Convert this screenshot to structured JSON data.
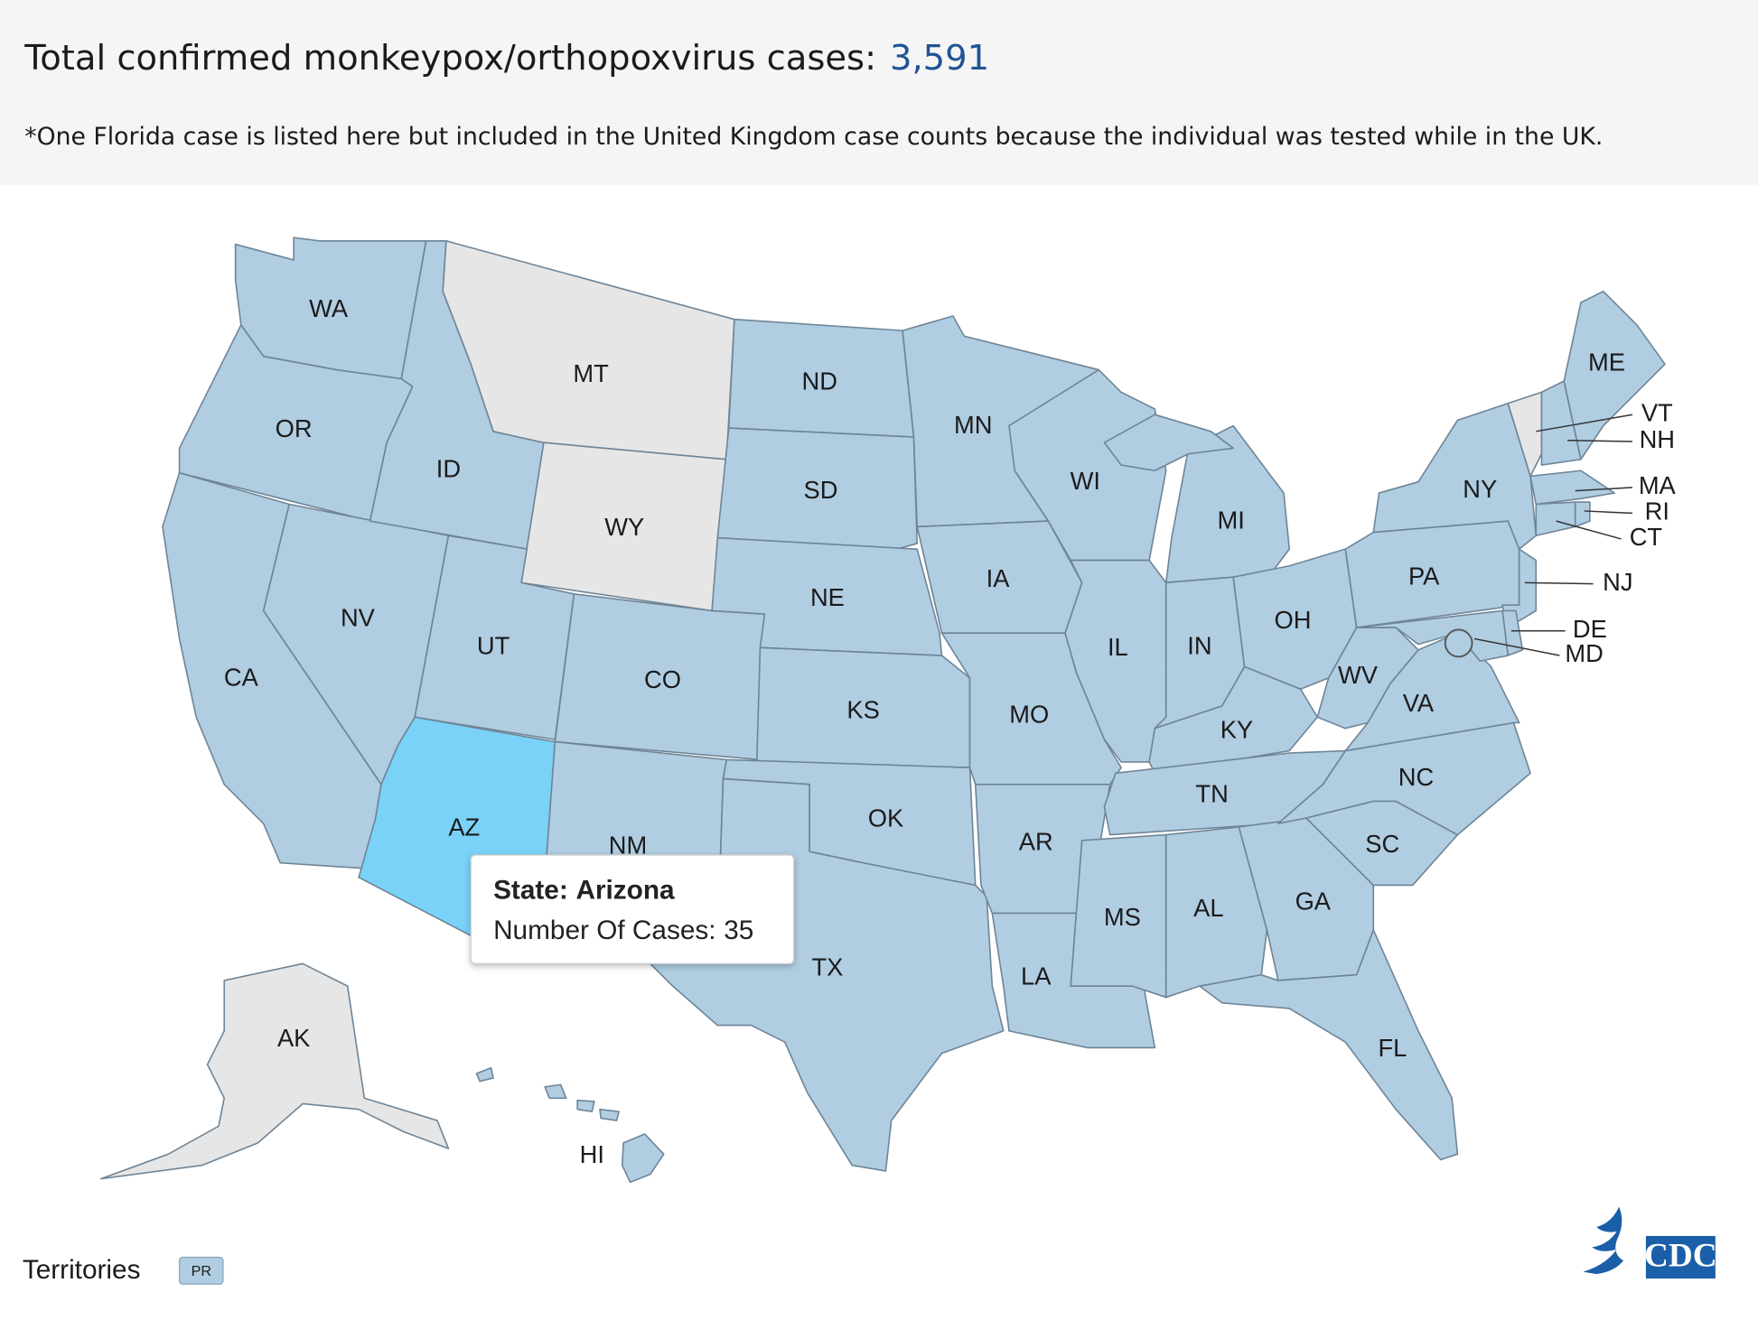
{
  "header": {
    "title": "Total confirmed monkeypox/orthopoxvirus cases:",
    "total": "3,591",
    "note": "*One Florida case is listed here but included in the United Kingdom case counts because the individual was tested while in the UK."
  },
  "map": {
    "states": [
      {
        "abbr": "WA",
        "color": "#b0cde2"
      },
      {
        "abbr": "OR",
        "color": "#b0cde2"
      },
      {
        "abbr": "CA",
        "color": "#b0cde2"
      },
      {
        "abbr": "NV",
        "color": "#b0cde2"
      },
      {
        "abbr": "ID",
        "color": "#b0cde2"
      },
      {
        "abbr": "MT",
        "color": "#e6e6e6"
      },
      {
        "abbr": "WY",
        "color": "#e6e6e6"
      },
      {
        "abbr": "UT",
        "color": "#b0cde2"
      },
      {
        "abbr": "CO",
        "color": "#b0cde2"
      },
      {
        "abbr": "AZ",
        "color": "#7ad2f8"
      },
      {
        "abbr": "NM",
        "color": "#b0cde2"
      },
      {
        "abbr": "ND",
        "color": "#b0cde2"
      },
      {
        "abbr": "SD",
        "color": "#b0cde2"
      },
      {
        "abbr": "NE",
        "color": "#b0cde2"
      },
      {
        "abbr": "KS",
        "color": "#b0cde2"
      },
      {
        "abbr": "OK",
        "color": "#b0cde2"
      },
      {
        "abbr": "TX",
        "color": "#b0cde2"
      },
      {
        "abbr": "MN",
        "color": "#b0cde2"
      },
      {
        "abbr": "IA",
        "color": "#b0cde2"
      },
      {
        "abbr": "MO",
        "color": "#b0cde2"
      },
      {
        "abbr": "AR",
        "color": "#b0cde2"
      },
      {
        "abbr": "LA",
        "color": "#b0cde2"
      },
      {
        "abbr": "WI",
        "color": "#b0cde2"
      },
      {
        "abbr": "IL",
        "color": "#b0cde2"
      },
      {
        "abbr": "MI",
        "color": "#b0cde2"
      },
      {
        "abbr": "IN",
        "color": "#b0cde2"
      },
      {
        "abbr": "OH",
        "color": "#b0cde2"
      },
      {
        "abbr": "KY",
        "color": "#b0cde2"
      },
      {
        "abbr": "TN",
        "color": "#b0cde2"
      },
      {
        "abbr": "MS",
        "color": "#b0cde2"
      },
      {
        "abbr": "AL",
        "color": "#b0cde2"
      },
      {
        "abbr": "GA",
        "color": "#b0cde2"
      },
      {
        "abbr": "FL",
        "color": "#b0cde2"
      },
      {
        "abbr": "SC",
        "color": "#b0cde2"
      },
      {
        "abbr": "NC",
        "color": "#b0cde2"
      },
      {
        "abbr": "VA",
        "color": "#b0cde2"
      },
      {
        "abbr": "WV",
        "color": "#b0cde2"
      },
      {
        "abbr": "PA",
        "color": "#b0cde2"
      },
      {
        "abbr": "NY",
        "color": "#b0cde2"
      },
      {
        "abbr": "NJ",
        "color": "#b0cde2"
      },
      {
        "abbr": "DE",
        "color": "#b0cde2"
      },
      {
        "abbr": "MD",
        "color": "#b0cde2"
      },
      {
        "abbr": "VT",
        "color": "#e6e6e6"
      },
      {
        "abbr": "NH",
        "color": "#b0cde2"
      },
      {
        "abbr": "ME",
        "color": "#b0cde2"
      },
      {
        "abbr": "MA",
        "color": "#b0cde2"
      },
      {
        "abbr": "CT",
        "color": "#b0cde2"
      },
      {
        "abbr": "RI",
        "color": "#b0cde2"
      },
      {
        "abbr": "AK",
        "color": "#e6e6e6"
      },
      {
        "abbr": "HI",
        "color": "#b0cde2"
      }
    ],
    "tooltip": {
      "state_label": "State:",
      "state": "Arizona",
      "cases_label": "Number Of Cases:",
      "cases": 35
    }
  },
  "footer": {
    "territories": "Territories",
    "pr": "PR",
    "logo": "CDC"
  }
}
